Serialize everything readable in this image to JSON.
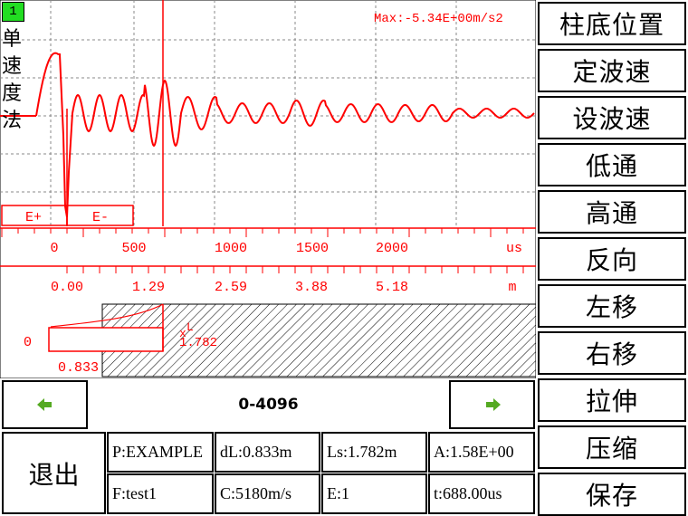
{
  "channel": {
    "number": "1",
    "method": [
      "单",
      "速",
      "度",
      "法"
    ]
  },
  "max_readout": "Max:-5.34E+00m/s2",
  "markers": {
    "e_plus": "E+",
    "e_minus": "E-"
  },
  "time_axis": {
    "ticks": [
      "0",
      "500",
      "1000",
      "1500",
      "2000"
    ],
    "unit": "us"
  },
  "depth_axis": {
    "ticks": [
      "0.00",
      "1.29",
      "2.59",
      "3.88",
      "5.18"
    ],
    "unit": "m"
  },
  "profile": {
    "zero": "0",
    "dl": "0.833",
    "x_label": "x",
    "l_label": "L",
    "l_value": "1.782"
  },
  "nav": {
    "range": "0-4096"
  },
  "right_menu": [
    "柱底位置",
    "定波速",
    "设波速",
    "低通",
    "高通",
    "反向",
    "左移",
    "右移",
    "拉伸",
    "压缩",
    "保存"
  ],
  "exit_label": "退出",
  "info": {
    "p": "P:EXAMPLE",
    "dl": "dL:0.833m",
    "ls": "Ls:1.782m",
    "a": "A:1.58E+00",
    "f": "F:test1",
    "c": "C:5180m/s",
    "e": "E:1",
    "t": "t:688.00us"
  },
  "colors": {
    "trace": "#ff0000",
    "grid": "#808080",
    "tag": "#22dd22",
    "arrow": "#55aa22"
  }
}
